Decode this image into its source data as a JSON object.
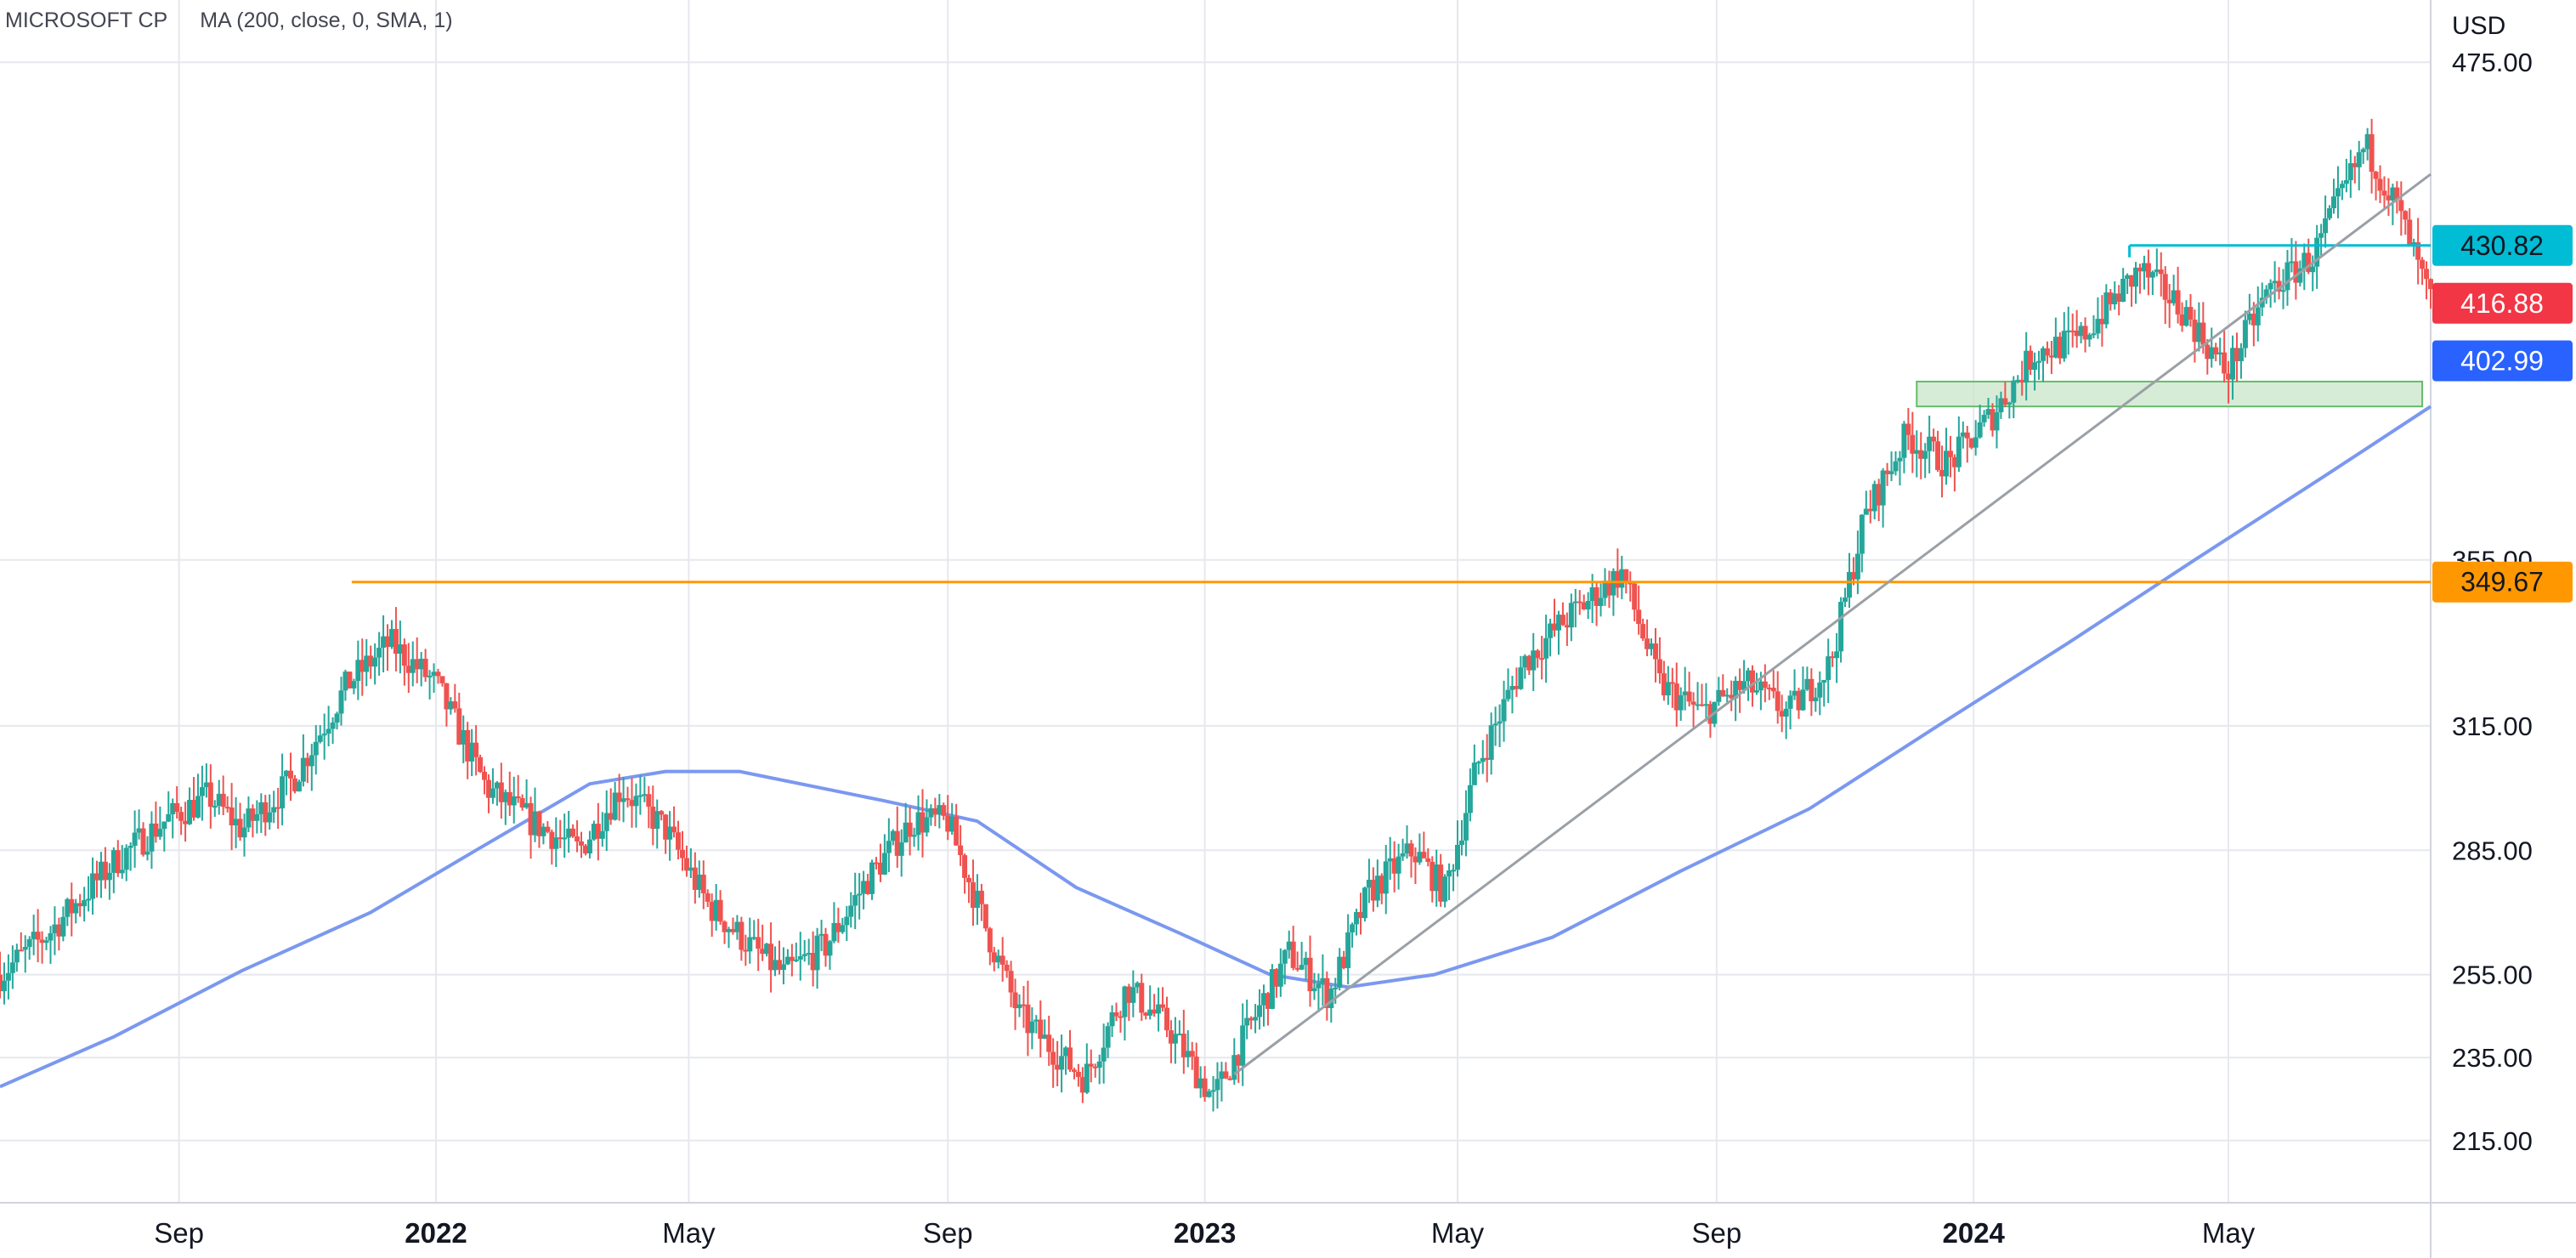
{
  "legend": {
    "symbol": "MICROSOFT CP",
    "indicator": "MA (200, close, 0, SMA, 1)"
  },
  "colors": {
    "background": "#ffffff",
    "grid": "#e6e8ee",
    "axis_text": "#131722",
    "candle_up": "#26a69a",
    "candle_down": "#ef5350",
    "ma": "#7b98f0",
    "resistance": "#ff9800",
    "range_top": "#00bcd4",
    "trendline": "#9aa0a6",
    "zone_fill": "#c8e6c9",
    "zone_border": "#66bb6a"
  },
  "chart_data": {
    "type": "line",
    "title": "MICROSOFT CP",
    "currency_label": "USD",
    "y_ticks": [
      "475.00",
      "355.00",
      "315.00",
      "285.00",
      "255.00",
      "235.00",
      "215.00"
    ],
    "ylim": [
      200,
      490
    ],
    "x_ticks": [
      "Sep",
      "2022",
      "May",
      "Sep",
      "2023",
      "May",
      "Sep",
      "2024",
      "May"
    ],
    "x_tick_dates": [
      "2021-09-01",
      "2022-01-01",
      "2022-05-01",
      "2022-09-01",
      "2023-01-01",
      "2023-05-01",
      "2023-09-01",
      "2024-01-01",
      "2024-05-01"
    ],
    "xlim": [
      "2021-06-08",
      "2024-08-05"
    ],
    "price_badges": [
      {
        "label": "430.82",
        "value": 430.82,
        "color": "#00bcd4"
      },
      {
        "label": "416.88",
        "value": 416.88,
        "color": "#f23645"
      },
      {
        "label": "402.99",
        "value": 402.99,
        "color": "#2962ff"
      },
      {
        "label": "349.67",
        "value": 349.67,
        "color": "#ff9800"
      }
    ],
    "series": [
      {
        "name": "MICROSOFT CP",
        "style": "ohlc-bars",
        "x": [
          "2021-06-08",
          "2021-07-01",
          "2021-08-01",
          "2021-08-25",
          "2021-09-15",
          "2021-10-01",
          "2021-10-25",
          "2021-11-20",
          "2021-12-10",
          "2022-01-01",
          "2022-01-25",
          "2022-02-15",
          "2022-03-10",
          "2022-03-30",
          "2022-04-20",
          "2022-05-10",
          "2022-05-30",
          "2022-06-15",
          "2022-07-05",
          "2022-07-25",
          "2022-08-15",
          "2022-09-01",
          "2022-09-20",
          "2022-10-05",
          "2022-10-25",
          "2022-11-05",
          "2022-11-25",
          "2022-12-15",
          "2023-01-05",
          "2023-01-25",
          "2023-02-10",
          "2023-03-01",
          "2023-03-20",
          "2023-04-10",
          "2023-04-25",
          "2023-05-10",
          "2023-06-01",
          "2023-06-20",
          "2023-07-18",
          "2023-08-05",
          "2023-08-25",
          "2023-09-15",
          "2023-10-05",
          "2023-10-25",
          "2023-11-10",
          "2023-11-30",
          "2023-12-20",
          "2024-01-10",
          "2024-01-30",
          "2024-02-20",
          "2024-03-20",
          "2024-04-10",
          "2024-04-30",
          "2024-05-20",
          "2024-06-10",
          "2024-07-05",
          "2024-07-20",
          "2024-08-05"
        ],
        "values": [
          255,
          265,
          282,
          292,
          298,
          290,
          302,
          325,
          335,
          325,
          300,
          292,
          285,
          300,
          290,
          272,
          262,
          255,
          262,
          278,
          292,
          292,
          265,
          245,
          235,
          230,
          252,
          242,
          225,
          245,
          260,
          250,
          275,
          285,
          275,
          305,
          330,
          340,
          352,
          325,
          318,
          325,
          318,
          330,
          365,
          385,
          378,
          390,
          405,
          408,
          425,
          415,
          400,
          420,
          428,
          455,
          440,
          417
        ],
        "color": "#26a69a"
      },
      {
        "name": "MA (200, close, 0, SMA, 1)",
        "style": "line",
        "x": [
          "2021-06-08",
          "2021-08-01",
          "2021-10-01",
          "2021-12-01",
          "2022-01-20",
          "2022-03-15",
          "2022-04-20",
          "2022-05-25",
          "2022-08-01",
          "2022-09-15",
          "2022-11-01",
          "2022-12-20",
          "2023-02-01",
          "2023-03-10",
          "2023-04-20",
          "2023-06-15",
          "2023-08-15",
          "2023-10-15",
          "2023-12-15",
          "2024-02-15",
          "2024-04-15",
          "2024-06-15",
          "2024-08-05"
        ],
        "values": [
          228,
          240,
          256,
          270,
          285,
          301,
          304,
          304,
          297,
          292,
          276,
          265,
          255,
          252,
          255,
          264,
          280,
          295,
          315,
          335,
          355,
          375,
          392
        ],
        "color": "#7b98f0"
      }
    ],
    "annotations": [
      {
        "type": "hline",
        "value": 349.67,
        "x_start": "2021-11-22",
        "color": "#ff9800"
      },
      {
        "type": "segment",
        "x": [
          "2024-03-15",
          "2024-08-20"
        ],
        "y": [
          430.82,
          430.82
        ],
        "color": "#00bcd4"
      },
      {
        "type": "trendline",
        "x": [
          "2023-01-15",
          "2024-08-05"
        ],
        "y": [
          231,
          448
        ],
        "color": "#9aa0a6"
      },
      {
        "type": "zone",
        "x": [
          "2023-12-05",
          "2024-08-01"
        ],
        "y": [
          392,
          398
        ],
        "color": "#c8e6c9"
      }
    ],
    "grid": true,
    "legend_position": "top-left"
  }
}
